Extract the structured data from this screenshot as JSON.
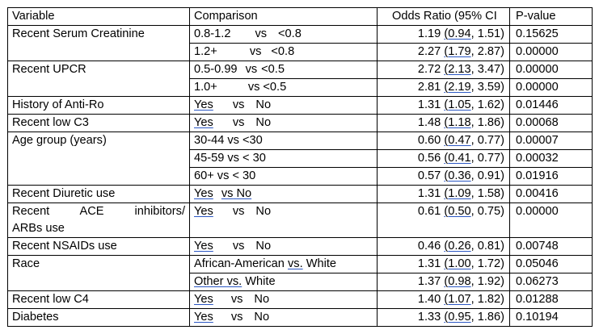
{
  "headers": {
    "variable": "Variable",
    "comparison": "Comparison",
    "odds_ratio": "Odds Ratio (95% CI",
    "p_value": "P-value"
  },
  "rows": [
    {
      "variable": "Recent Serum Creatinine",
      "cmp_a": "0.8-1.2",
      "cmp_sep": "vs",
      "cmp_b": "<0.8",
      "or": "1.19",
      "lo": "0.94",
      "hi": "1.51)",
      "p": "0.15625"
    },
    {
      "variable": "",
      "cmp_a": "1.2+",
      "cmp_sep": "vs",
      "cmp_b": "<0.8",
      "or": "2.27",
      "lo": "1.79",
      "hi": "2.87)",
      "p": "0.00000"
    },
    {
      "variable": "Recent UPCR",
      "cmp_a": "0.5-0.99",
      "cmp_sep": "vs",
      "cmp_b": "<0.5",
      "or": "2.72",
      "lo": "2.13",
      "hi": "3.47)",
      "p": "0.00000"
    },
    {
      "variable": "",
      "cmp_a": "1.0+",
      "cmp_sep": "vs",
      "cmp_b": "<0.5",
      "or": "2.81",
      "lo": "2.19",
      "hi": "3.59)",
      "p": "0.00000"
    },
    {
      "variable": "History of Anti-Ro",
      "cmp_a": "Yes",
      "cmp_sep": "vs",
      "cmp_b": "No",
      "or": "1.31",
      "lo": "1.05",
      "hi": "1.62)",
      "p": "0.01446"
    },
    {
      "variable": "Recent low C3",
      "cmp_a": "Yes",
      "cmp_sep": "vs",
      "cmp_b": "No",
      "or": "1.48",
      "lo": "1.18",
      "hi": "1.86)",
      "p": "0.00068"
    },
    {
      "variable": "Age group (years)",
      "cmp_a": "30-44 vs <30",
      "cmp_sep": "",
      "cmp_b": "",
      "or": "0.60",
      "lo": "0.47",
      "hi": "0.77)",
      "p": "0.00007"
    },
    {
      "variable": "",
      "cmp_a": "45-59 vs < 30",
      "cmp_sep": "",
      "cmp_b": "",
      "or": "0.56",
      "lo": "0.41",
      "hi": "0.77)",
      "p": "0.00032"
    },
    {
      "variable": "",
      "cmp_a": "60+ vs < 30",
      "cmp_sep": "",
      "cmp_b": "",
      "or": "0.57",
      "lo": "0.36",
      "hi": "0.91)",
      "p": "0.01916"
    },
    {
      "variable": "Recent Diuretic use",
      "cmp_a": "Yes",
      "cmp_sep": "vs",
      "cmp_b": "No",
      "or": "1.31",
      "lo": "1.09",
      "hi": "1.58)",
      "p": "0.00416"
    },
    {
      "variable_l1": "Recent ACE inhibitors/",
      "variable_l2": "ARBs use",
      "cmp_a": "Yes",
      "cmp_sep": "vs",
      "cmp_b": "No",
      "or": "0.61",
      "lo": "0.50",
      "hi": "0.75)",
      "p": "0.00000"
    },
    {
      "variable": "Recent NSAIDs use",
      "cmp_a": "Yes",
      "cmp_sep": "vs",
      "cmp_b": "No",
      "or": "0.46",
      "lo": "0.26",
      "hi": "0.81)",
      "p": "0.00748"
    },
    {
      "variable": "Race",
      "cmp_a": "African-American",
      "cmp_sep": "vs.",
      "cmp_b": "White",
      "or": "1.31",
      "lo": "1.00",
      "hi": "1.72)",
      "p": "0.05046"
    },
    {
      "variable": "",
      "cmp_a": "Other",
      "cmp_sep": "vs.",
      "cmp_b": "White",
      "or": "1.37",
      "lo": "0.98",
      "hi": "1.92)",
      "p": "0.06273"
    },
    {
      "variable": "Recent low C4",
      "cmp_a": "Yes",
      "cmp_sep": "vs",
      "cmp_b": "No",
      "or": "1.40",
      "lo": "1.07",
      "hi": "1.82)",
      "p": "0.01288"
    },
    {
      "variable": "Diabetes",
      "cmp_a": "Yes",
      "cmp_sep": "vs",
      "cmp_b": "No",
      "or": "1.33",
      "lo": "0.95",
      "hi": "1.86)",
      "p": "0.10194"
    }
  ],
  "colors": {
    "border": "#000000",
    "spellcheck_underline": "#2b57c4"
  }
}
